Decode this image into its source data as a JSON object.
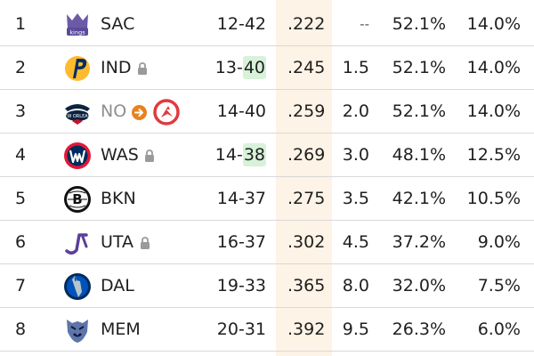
{
  "rows": [
    {
      "rank": "1",
      "team": "SAC",
      "record_w": "12",
      "record_sep": "-",
      "record_l": "42",
      "win_pct": ".222",
      "gb": "--",
      "top4": "52.1%",
      "first": "14.0%"
    },
    {
      "rank": "2",
      "team": "IND",
      "record_w": "13",
      "record_sep": "-",
      "record_l": "40",
      "win_pct": ".245",
      "gb": "1.5",
      "top4": "52.1%",
      "first": "14.0%"
    },
    {
      "rank": "3",
      "team": "NO",
      "record_w": "14",
      "record_sep": "-",
      "record_l": "40",
      "win_pct": ".259",
      "gb": "2.0",
      "top4": "52.1%",
      "first": "14.0%"
    },
    {
      "rank": "4",
      "team": "WAS",
      "record_w": "14",
      "record_sep": "-",
      "record_l": "38",
      "win_pct": ".269",
      "gb": "3.0",
      "top4": "48.1%",
      "first": "12.5%"
    },
    {
      "rank": "5",
      "team": "BKN",
      "record_w": "14",
      "record_sep": "-",
      "record_l": "37",
      "win_pct": ".275",
      "gb": "3.5",
      "top4": "42.1%",
      "first": "10.5%"
    },
    {
      "rank": "6",
      "team": "UTA",
      "record_w": "16",
      "record_sep": "-",
      "record_l": "37",
      "win_pct": ".302",
      "gb": "4.5",
      "top4": "37.2%",
      "first": "9.0%"
    },
    {
      "rank": "7",
      "team": "DAL",
      "record_w": "19",
      "record_sep": "-",
      "record_l": "33",
      "win_pct": ".365",
      "gb": "8.0",
      "top4": "32.0%",
      "first": "7.5%"
    },
    {
      "rank": "8",
      "team": "MEM",
      "record_w": "20",
      "record_sep": "-",
      "record_l": "31",
      "win_pct": ".392",
      "gb": "9.5",
      "top4": "26.3%",
      "first": "6.0%"
    }
  ],
  "colors": {
    "highlight_column": "#fdf3e6",
    "record_highlight": "#d7f2d9",
    "row_divider": "#d9d9d9",
    "traded_pick_arrow": "#e8821e",
    "hawks_red": "#e03a3e"
  },
  "icons": {
    "row1_logo": "sacramento-kings-logo",
    "row2_logo": "indiana-pacers-logo",
    "row3_logo": "new-orleans-pelicans-logo",
    "row4_logo": "washington-wizards-logo",
    "row5_logo": "brooklyn-nets-logo",
    "row6_logo": "utah-jazz-logo",
    "row7_logo": "dallas-mavericks-logo",
    "row8_logo": "memphis-grizzlies-logo",
    "lock": "lock-icon",
    "pick_swap": "arrow-right-icon",
    "pick_owner_logo": "atlanta-hawks-logo"
  }
}
